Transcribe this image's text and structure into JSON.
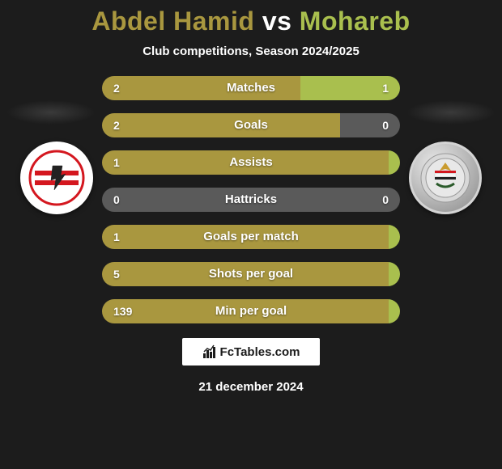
{
  "title": {
    "player1": "Abdel Hamid",
    "vs": "vs",
    "player2": "Mohareb",
    "color1": "#a9973f",
    "color_vs": "#ffffff",
    "color2": "#a9bf4e"
  },
  "subtitle": "Club competitions, Season 2024/2025",
  "date": "21 december 2024",
  "footer_brand": "FcTables.com",
  "bar_style": {
    "height": 30,
    "radius": 15,
    "gap": 16,
    "left_color": "#a9973f",
    "right_color": "#a9bf4e",
    "neutral_color": "#5a5a5a",
    "label_color": "#ffffff",
    "value_color": "#ffffff",
    "container_width": 368
  },
  "logos": {
    "left": {
      "name": "zamalek-crest",
      "bg": "#ffffff",
      "accent": "#d4171f"
    },
    "right": {
      "name": "tala-ea-elgaish-crest",
      "bg": "#c8c8c8",
      "accent": "#333333"
    }
  },
  "stats": [
    {
      "label": "Matches",
      "left_val": "2",
      "right_val": "1",
      "left_pct": 66.7,
      "right_pct": 33.3
    },
    {
      "label": "Goals",
      "left_val": "2",
      "right_val": "0",
      "left_pct": 80.0,
      "right_pct": 20.0,
      "right_neutral": true
    },
    {
      "label": "Assists",
      "left_val": "1",
      "right_val": "",
      "left_pct": 100,
      "right_pct": 0
    },
    {
      "label": "Hattricks",
      "left_val": "0",
      "right_val": "0",
      "left_pct": 50.0,
      "right_pct": 50.0,
      "left_neutral": true,
      "right_neutral": true
    },
    {
      "label": "Goals per match",
      "left_val": "1",
      "right_val": "",
      "left_pct": 100,
      "right_pct": 0
    },
    {
      "label": "Shots per goal",
      "left_val": "5",
      "right_val": "",
      "left_pct": 100,
      "right_pct": 0
    },
    {
      "label": "Min per goal",
      "left_val": "139",
      "right_val": "",
      "left_pct": 100,
      "right_pct": 0
    }
  ]
}
